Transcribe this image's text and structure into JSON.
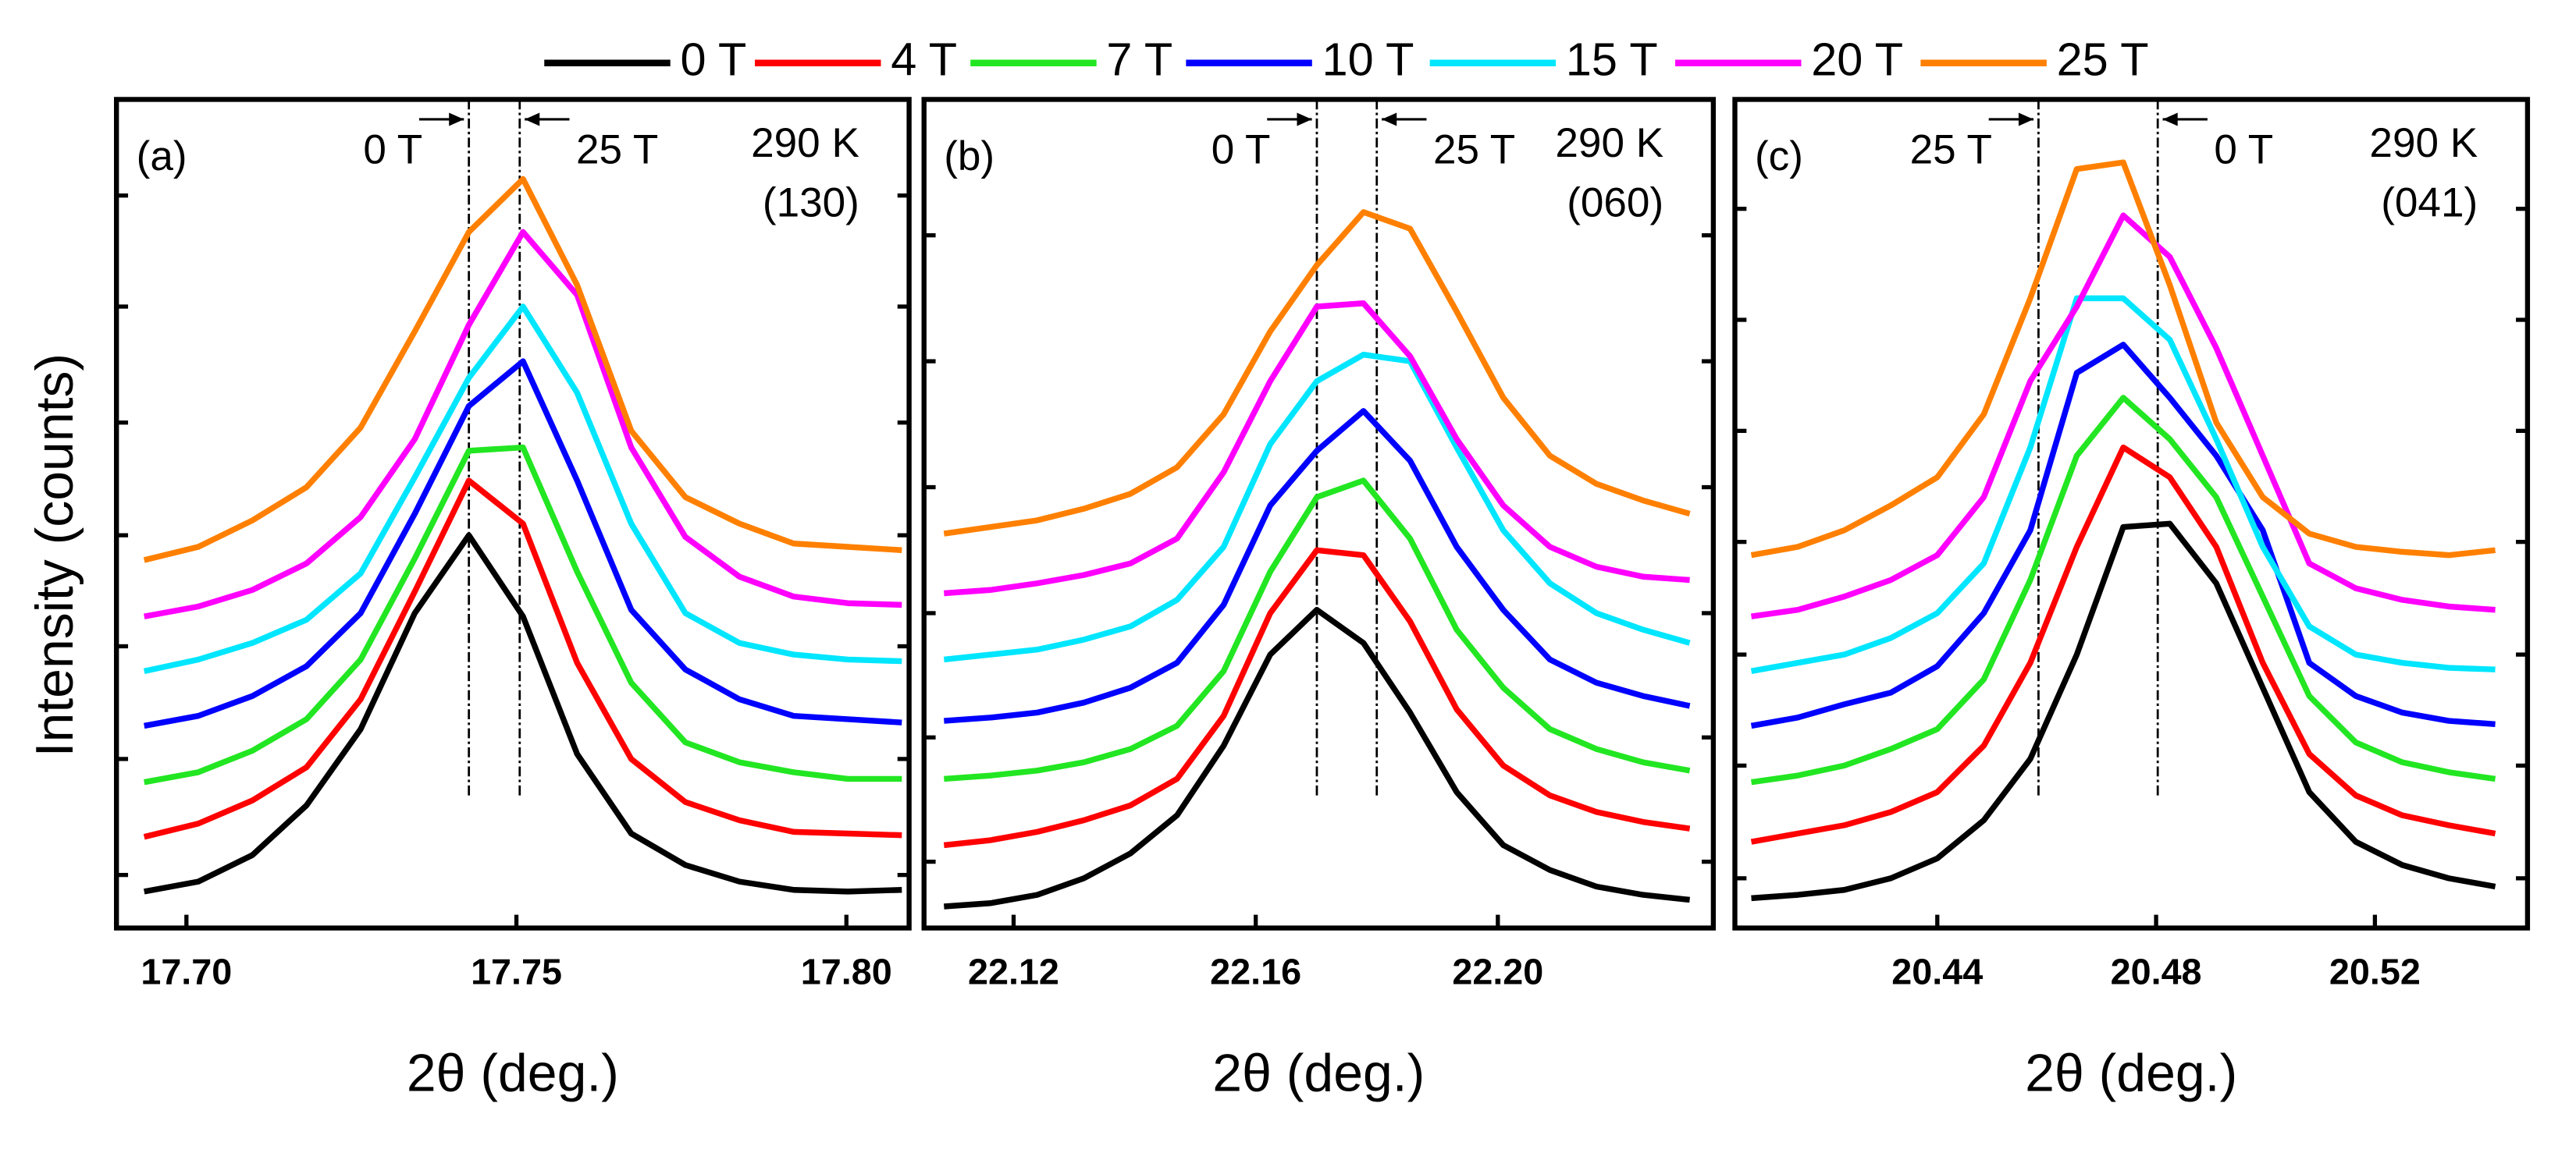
{
  "chart_data": [
    {
      "type": "line",
      "panel": "(a)",
      "annotations": [
        "290 K",
        "(130)"
      ],
      "xlabel": "2θ (deg.)",
      "ylabel": "Intensity (counts)",
      "x": [
        17.6936,
        17.7018,
        17.71,
        17.7182,
        17.7264,
        17.7346,
        17.7428,
        17.751,
        17.7592,
        17.7674,
        17.7756,
        17.7838,
        17.792,
        17.8002,
        17.8084
      ],
      "series": [
        {
          "name": "0 T",
          "color": "#000000",
          "values": [
            4.4,
            5.6,
            8.8,
            14.8,
            24,
            38,
            47.4,
            37.6,
            21,
            11.4,
            7.6,
            5.6,
            4.6,
            4.4,
            4.6
          ]
        },
        {
          "name": "4 T",
          "color": "#ff0000",
          "values": [
            11,
            12.6,
            15.4,
            19.4,
            27.6,
            40.6,
            54,
            48.8,
            32,
            20.4,
            15.2,
            13,
            11.6,
            11.4,
            11.2
          ]
        },
        {
          "name": "7 T",
          "color": "#22e622",
          "values": [
            17.6,
            18.8,
            21.4,
            25.2,
            32.4,
            44.6,
            57.6,
            58,
            43,
            29.6,
            22.4,
            20,
            18.8,
            18,
            18
          ]
        },
        {
          "name": "10 T",
          "color": "#0000ff",
          "values": [
            24.4,
            25.6,
            28,
            31.6,
            38,
            50,
            63,
            68.4,
            54,
            38.4,
            31.2,
            27.6,
            25.6,
            25.2,
            24.8
          ]
        },
        {
          "name": "15 T",
          "color": "#00e6ff",
          "values": [
            31,
            32.4,
            34.4,
            37.2,
            42.8,
            54.4,
            66.4,
            75,
            64.6,
            48.8,
            38,
            34.4,
            33,
            32.4,
            32.2
          ]
        },
        {
          "name": "20 T",
          "color": "#ff00ff",
          "values": [
            37.6,
            38.8,
            40.8,
            44,
            49.6,
            59,
            72.8,
            84,
            76.4,
            58,
            47.2,
            42.4,
            40,
            39.2,
            39
          ]
        },
        {
          "name": "25 T",
          "color": "#ff8000",
          "values": [
            44.4,
            46,
            49.2,
            53.2,
            60.4,
            72,
            84,
            90.4,
            77.6,
            60,
            52,
            48.8,
            46.4,
            46,
            45.6
          ]
        }
      ],
      "xlim": [
        17.6894,
        17.8095
      ],
      "xticks": [
        {
          "value": 17.7,
          "label": "17.70"
        },
        {
          "value": 17.75,
          "label": "17.75"
        },
        {
          "value": 17.8,
          "label": "17.80"
        }
      ],
      "ylim": [
        0,
        100
      ],
      "yticks": [
        6.4,
        20.4,
        34,
        47.4,
        61,
        75,
        88.4
      ],
      "markers": [
        {
          "label": "0 T",
          "x": 17.7428
        },
        {
          "label": "25 T",
          "x": 17.7505
        }
      ]
    },
    {
      "type": "line",
      "panel": "(b)",
      "annotations": [
        "290 K",
        "(060)"
      ],
      "xlabel": "2θ (deg.)",
      "x": [
        22.1085,
        22.1162,
        22.1239,
        22.1316,
        22.1393,
        22.147,
        22.1547,
        22.1624,
        22.1701,
        22.1778,
        22.1855,
        22.1932,
        22.2009,
        22.2086,
        22.2163,
        22.224,
        22.2317
      ],
      "series": [
        {
          "name": "0 T",
          "color": "#000000",
          "values": [
            2.6,
            3,
            4,
            6,
            9,
            13.6,
            22,
            33,
            38.4,
            34.4,
            26,
            16.4,
            10,
            7,
            5,
            4,
            3.4
          ]
        },
        {
          "name": "4 T",
          "color": "#ff0000",
          "values": [
            10,
            10.6,
            11.6,
            13,
            14.8,
            18,
            25.6,
            38,
            45.6,
            45,
            37,
            26.4,
            19.6,
            16,
            14,
            12.8,
            12
          ]
        },
        {
          "name": "7 T",
          "color": "#22e622",
          "values": [
            18,
            18.4,
            19,
            20,
            21.6,
            24.4,
            31,
            43,
            52,
            54,
            47,
            36,
            29,
            24,
            21.6,
            20,
            19
          ]
        },
        {
          "name": "10 T",
          "color": "#0000ff",
          "values": [
            25,
            25.4,
            26,
            27.2,
            29,
            32,
            39,
            51,
            57.6,
            62.4,
            56.4,
            46,
            38.4,
            32.4,
            29.6,
            28,
            26.8
          ]
        },
        {
          "name": "15 T",
          "color": "#00e6ff",
          "values": [
            32.4,
            33,
            33.6,
            34.8,
            36.4,
            39.6,
            46,
            58.4,
            66,
            69.2,
            68.4,
            58,
            48,
            41.6,
            38,
            36,
            34.4
          ]
        },
        {
          "name": "20 T",
          "color": "#ff00ff",
          "values": [
            40.4,
            40.8,
            41.6,
            42.6,
            44,
            47,
            55,
            66,
            75,
            75.4,
            69,
            59,
            51,
            46,
            43.6,
            42.4,
            42
          ]
        },
        {
          "name": "25 T",
          "color": "#ff8000",
          "values": [
            47.6,
            48.4,
            49.2,
            50.6,
            52.4,
            55.6,
            62,
            72,
            80,
            86.4,
            84.4,
            74.4,
            64,
            57,
            53.6,
            51.6,
            50
          ]
        }
      ],
      "xlim": [
        22.1052,
        22.2356
      ],
      "xticks": [
        {
          "value": 22.12,
          "label": "22.12"
        },
        {
          "value": 22.16,
          "label": "22.16"
        },
        {
          "value": 22.2,
          "label": "22.20"
        }
      ],
      "ylim": [
        0,
        100
      ],
      "yticks": [
        8,
        23,
        38,
        53.2,
        68.4,
        83.6
      ],
      "markers": [
        {
          "label": "0 T",
          "x": 22.1701
        },
        {
          "label": "25 T",
          "x": 22.18
        }
      ]
    },
    {
      "type": "line",
      "panel": "(c)",
      "annotations": [
        "290 K",
        "(041)"
      ],
      "xlabel": "2θ (deg.)",
      "x": [
        20.406,
        20.4145,
        20.423,
        20.4315,
        20.44,
        20.4485,
        20.457,
        20.4655,
        20.474,
        20.4825,
        20.491,
        20.4995,
        20.508,
        20.5165,
        20.525,
        20.5335,
        20.542
      ],
      "series": [
        {
          "name": "0 T",
          "color": "#000000",
          "values": [
            3.6,
            4,
            4.6,
            6,
            8.4,
            13,
            20.4,
            33,
            48.4,
            48.8,
            41.6,
            29,
            16.4,
            10.4,
            7.6,
            6,
            5
          ]
        },
        {
          "name": "4 T",
          "color": "#ff0000",
          "values": [
            10.4,
            11.4,
            12.4,
            14,
            16.4,
            22,
            32,
            46,
            58,
            54.4,
            46,
            32,
            21,
            16,
            13.6,
            12.4,
            11.4
          ]
        },
        {
          "name": "7 T",
          "color": "#22e622",
          "values": [
            17.6,
            18.4,
            19.6,
            21.6,
            24,
            30,
            42,
            57,
            64,
            59,
            52,
            40,
            28,
            22.4,
            20,
            18.8,
            18
          ]
        },
        {
          "name": "10 T",
          "color": "#0000ff",
          "values": [
            24.4,
            25.4,
            27,
            28.4,
            31.6,
            38,
            48,
            67,
            70.4,
            64,
            57,
            48,
            32,
            28,
            26,
            25,
            24.6
          ]
        },
        {
          "name": "15 T",
          "color": "#00e6ff",
          "values": [
            31,
            32,
            33,
            35,
            38,
            44,
            58,
            76,
            76,
            71,
            59,
            46,
            36.4,
            33,
            32,
            31.4,
            31.2
          ]
        },
        {
          "name": "20 T",
          "color": "#ff00ff",
          "values": [
            37.6,
            38.4,
            40,
            42,
            45,
            52,
            66,
            75,
            86,
            81,
            70,
            57,
            44,
            41,
            39.6,
            38.8,
            38.4
          ]
        },
        {
          "name": "25 T",
          "color": "#ff8000",
          "values": [
            45,
            46,
            48,
            51,
            54.4,
            62,
            76,
            91.6,
            92.4,
            77.6,
            61,
            52,
            47.6,
            46,
            45.4,
            45,
            45.6
          ]
        }
      ],
      "xlim": [
        20.403,
        20.5479
      ],
      "xticks": [
        {
          "value": 20.44,
          "label": "20.44"
        },
        {
          "value": 20.48,
          "label": "20.48"
        },
        {
          "value": 20.52,
          "label": "20.52"
        }
      ],
      "ylim": [
        0,
        100
      ],
      "yticks": [
        6,
        19.6,
        33,
        46.6,
        60,
        73.4,
        86.8
      ],
      "markers": [
        {
          "label": "25 T",
          "x": 20.4585
        },
        {
          "label": "0 T",
          "x": 20.4803
        }
      ]
    }
  ]
}
